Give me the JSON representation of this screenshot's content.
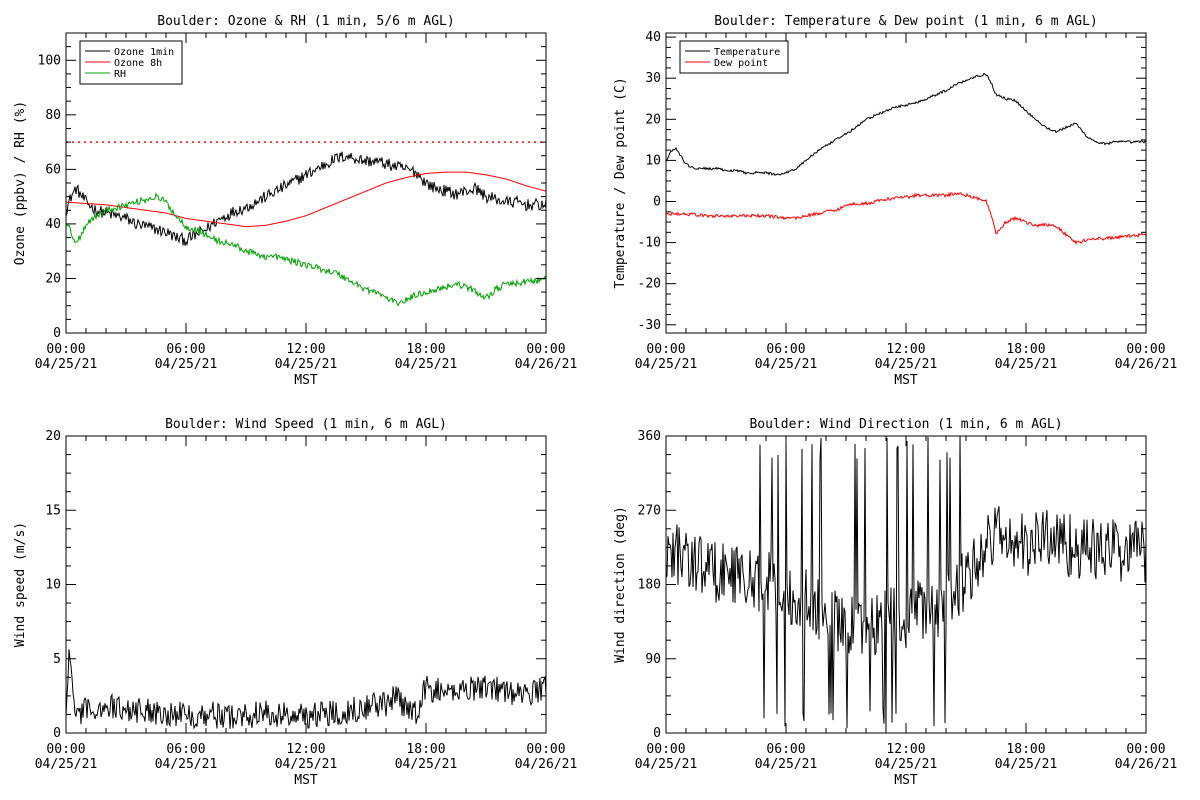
{
  "chart_data": [
    {
      "type": "line",
      "title": "Boulder: Ozone & RH (1 min, 5/6 m AGL)",
      "xlabel": "MST",
      "ylabel": "Ozone (ppbv) / RH (%)",
      "xlim": [
        0,
        24
      ],
      "ylim": [
        0,
        110
      ],
      "yticks": [
        0,
        20,
        40,
        60,
        80,
        100
      ],
      "xticks": [
        {
          "x": 0,
          "time": "00:00",
          "date": "04/25/21"
        },
        {
          "x": 6,
          "time": "06:00",
          "date": "04/25/21"
        },
        {
          "x": 12,
          "time": "12:00",
          "date": "04/25/21"
        },
        {
          "x": 18,
          "time": "18:00",
          "date": "04/25/21"
        },
        {
          "x": 24,
          "time": "00:00",
          "date": "04/26/21"
        }
      ],
      "legend_position": "top-left",
      "reference_lines": [
        {
          "y": 70,
          "color": "#ff0000",
          "style": "dotted"
        }
      ],
      "series": [
        {
          "name": "Ozone 1min",
          "color": "#000000",
          "noise": 2.2,
          "x": [
            0,
            0.25,
            0.5,
            1,
            1.5,
            2,
            2.5,
            3,
            3.5,
            4,
            4.5,
            5,
            5.5,
            6,
            6.5,
            7,
            7.5,
            8,
            8.5,
            9,
            9.5,
            10,
            10.5,
            11,
            11.5,
            12,
            12.5,
            13,
            13.5,
            14,
            14.5,
            15,
            15.5,
            16,
            16.5,
            17,
            17.5,
            18,
            18.5,
            19,
            19.5,
            20,
            20.5,
            21,
            21.5,
            22,
            22.5,
            23,
            23.5,
            24
          ],
          "y": [
            45,
            50,
            53,
            48,
            45,
            44,
            43,
            42,
            40,
            39,
            38,
            37,
            35,
            34,
            36,
            38,
            41,
            43,
            45,
            46,
            48,
            50,
            52,
            54,
            56,
            58,
            60,
            62,
            64,
            65,
            64,
            63,
            63,
            62,
            61,
            60,
            59,
            55,
            53,
            52,
            51,
            52,
            53,
            50,
            49,
            48,
            48,
            47,
            47,
            47
          ]
        },
        {
          "name": "Ozone 8h",
          "color": "#ff0000",
          "noise": 0,
          "x": [
            0,
            1,
            2,
            3,
            4,
            5,
            6,
            7,
            8,
            9,
            10,
            11,
            12,
            13,
            14,
            15,
            16,
            17,
            18,
            19,
            20,
            21,
            22,
            23,
            24
          ],
          "y": [
            48,
            47.5,
            47,
            46,
            45,
            44,
            42,
            41,
            40,
            39,
            39.5,
            41,
            43,
            46,
            49,
            52,
            55,
            57,
            58.5,
            59,
            59,
            58,
            56.5,
            54,
            52
          ]
        },
        {
          "name": "RH",
          "color": "#00a000",
          "noise": 1.2,
          "x": [
            0,
            0.25,
            0.5,
            0.75,
            1,
            1.5,
            2,
            2.5,
            3,
            3.5,
            4,
            4.5,
            5,
            5.5,
            6,
            6.5,
            7,
            7.5,
            8,
            8.5,
            9,
            9.5,
            10,
            10.5,
            11,
            11.5,
            12,
            12.5,
            13,
            13.5,
            14,
            14.5,
            15,
            15.5,
            16,
            16.5,
            17,
            17.5,
            18,
            18.5,
            19,
            19.5,
            20,
            20.5,
            21,
            21.5,
            22,
            22.5,
            23,
            23.5,
            24
          ],
          "y": [
            41,
            37,
            33,
            36,
            40,
            43,
            45,
            46,
            47,
            48,
            49,
            50,
            48,
            43,
            39,
            38,
            36,
            34,
            33,
            32,
            30,
            29,
            28,
            28,
            27,
            26,
            25,
            24,
            23,
            22,
            20,
            18,
            16,
            15,
            13,
            11,
            12,
            14,
            15,
            16,
            17,
            18,
            17,
            15,
            13,
            16,
            18,
            18,
            19,
            19,
            20
          ]
        }
      ]
    },
    {
      "type": "line",
      "title": "Boulder: Temperature & Dew point (1 min, 6 m AGL)",
      "xlabel": "MST",
      "ylabel": "Temperature / Dew point (C)",
      "xlim": [
        0,
        24
      ],
      "ylim": [
        -32,
        41
      ],
      "yticks": [
        -30,
        -20,
        -10,
        0,
        10,
        20,
        30,
        40
      ],
      "xticks": [
        {
          "x": 0,
          "time": "00:00",
          "date": "04/25/21"
        },
        {
          "x": 6,
          "time": "06:00",
          "date": "04/25/21"
        },
        {
          "x": 12,
          "time": "12:00",
          "date": "04/25/21"
        },
        {
          "x": 18,
          "time": "18:00",
          "date": "04/25/21"
        },
        {
          "x": 24,
          "time": "00:00",
          "date": "04/26/21"
        }
      ],
      "legend_position": "top-left",
      "reference_lines": [],
      "series": [
        {
          "name": "Temperature",
          "color": "#000000",
          "noise": 0.3,
          "x": [
            0,
            0.25,
            0.5,
            0.75,
            1,
            1.5,
            2,
            2.5,
            3,
            3.5,
            4,
            4.5,
            5,
            5.5,
            6,
            6.5,
            7,
            7.5,
            8,
            8.5,
            9,
            9.5,
            10,
            10.5,
            11,
            11.5,
            12,
            12.5,
            13,
            13.5,
            14,
            14.5,
            15,
            15.5,
            16,
            16.25,
            16.5,
            17,
            17.5,
            18,
            18.5,
            19,
            19.5,
            20,
            20.5,
            21,
            21.5,
            22,
            22.5,
            23,
            23.5,
            24
          ],
          "y": [
            10,
            12,
            13,
            11,
            9,
            8,
            8,
            8,
            7.5,
            7.5,
            7,
            7,
            7,
            6.5,
            7,
            8,
            10,
            12,
            13.5,
            15,
            16.5,
            18,
            20,
            21,
            22,
            23,
            23.5,
            24,
            25,
            26,
            27,
            28.5,
            29.5,
            30.5,
            31,
            29,
            26,
            25,
            24.5,
            22,
            20,
            18,
            17,
            18,
            19,
            16,
            14.5,
            14,
            14.5,
            14.5,
            14.5,
            14.5
          ]
        },
        {
          "name": "Dew point",
          "color": "#ff0000",
          "noise": 0.4,
          "x": [
            0,
            1,
            2,
            3,
            4,
            5,
            6,
            6.5,
            7,
            7.5,
            8,
            8.5,
            9,
            9.5,
            10,
            10.5,
            11,
            11.5,
            12,
            12.5,
            13,
            13.5,
            14,
            14.5,
            15,
            15.5,
            16,
            16.25,
            16.5,
            17,
            17.5,
            18,
            18.5,
            19,
            19.5,
            20,
            20.5,
            21,
            21.5,
            22,
            23,
            24
          ],
          "y": [
            -3,
            -3,
            -3.5,
            -3.5,
            -3.5,
            -3.5,
            -4,
            -4,
            -3.5,
            -3,
            -2.5,
            -2,
            -1,
            -0.5,
            -0.5,
            0,
            0.5,
            1,
            1,
            1.5,
            1.5,
            1.5,
            1.5,
            2,
            1.5,
            1,
            0,
            -3,
            -8,
            -5,
            -4,
            -5,
            -6,
            -5.5,
            -6,
            -8,
            -10,
            -9.5,
            -9,
            -9,
            -8.5,
            -8
          ]
        }
      ]
    },
    {
      "type": "line",
      "title": "Boulder: Wind Speed (1 min, 6 m AGL)",
      "xlabel": "MST",
      "ylabel": "Wind speed (m/s)",
      "xlim": [
        0,
        24
      ],
      "ylim": [
        0,
        20
      ],
      "yticks": [
        0,
        5,
        10,
        15,
        20
      ],
      "xticks": [
        {
          "x": 0,
          "time": "00:00",
          "date": "04/25/21"
        },
        {
          "x": 6,
          "time": "06:00",
          "date": "04/25/21"
        },
        {
          "x": 12,
          "time": "12:00",
          "date": "04/25/21"
        },
        {
          "x": 18,
          "time": "18:00",
          "date": "04/25/21"
        },
        {
          "x": 24,
          "time": "00:00",
          "date": "04/26/21"
        }
      ],
      "legend_position": "none",
      "reference_lines": [],
      "series": [
        {
          "color": "#000000",
          "noise": 0.9,
          "x": [
            0,
            0.15,
            0.3,
            0.5,
            1,
            1.5,
            2,
            3,
            4,
            5,
            6,
            7,
            8,
            9,
            10,
            11,
            12,
            13,
            14,
            15,
            16,
            16.5,
            17,
            17.5,
            18,
            19,
            20,
            21,
            22,
            23,
            24
          ],
          "y": [
            1,
            5,
            4,
            1,
            1.5,
            1.7,
            1.8,
            1.6,
            1.5,
            1.4,
            1.2,
            1.3,
            1.1,
            1.2,
            1.3,
            1.2,
            1.2,
            1.3,
            1.5,
            1.8,
            2.0,
            2.4,
            1.5,
            1.5,
            3.0,
            2.7,
            3.0,
            3.2,
            2.8,
            2.5,
            3.2
          ]
        }
      ]
    },
    {
      "type": "line",
      "title": "Boulder: Wind Direction (1 min, 6 m AGL)",
      "xlabel": "MST",
      "ylabel": "Wind direction (deg)",
      "xlim": [
        0,
        24
      ],
      "ylim": [
        0,
        360
      ],
      "yticks": [
        0,
        90,
        180,
        270,
        360
      ],
      "xticks": [
        {
          "x": 0,
          "time": "00:00",
          "date": "04/25/21"
        },
        {
          "x": 6,
          "time": "06:00",
          "date": "04/25/21"
        },
        {
          "x": 12,
          "time": "12:00",
          "date": "04/25/21"
        },
        {
          "x": 18,
          "time": "18:00",
          "date": "04/25/21"
        },
        {
          "x": 24,
          "time": "00:00",
          "date": "04/26/21"
        }
      ],
      "legend_position": "none",
      "reference_lines": [],
      "series": [
        {
          "color": "#000000",
          "noise": 40,
          "x": [
            0,
            1,
            2,
            3,
            4,
            5,
            6,
            7,
            8,
            9,
            10,
            11,
            12,
            13,
            14,
            15,
            16,
            16.5,
            17,
            18,
            19,
            20,
            21,
            22,
            23,
            24
          ],
          "y": [
            220,
            215,
            200,
            195,
            190,
            185,
            170,
            160,
            140,
            130,
            130,
            140,
            140,
            150,
            160,
            190,
            225,
            245,
            235,
            225,
            240,
            230,
            222,
            222,
            222,
            222
          ]
        }
      ]
    }
  ]
}
